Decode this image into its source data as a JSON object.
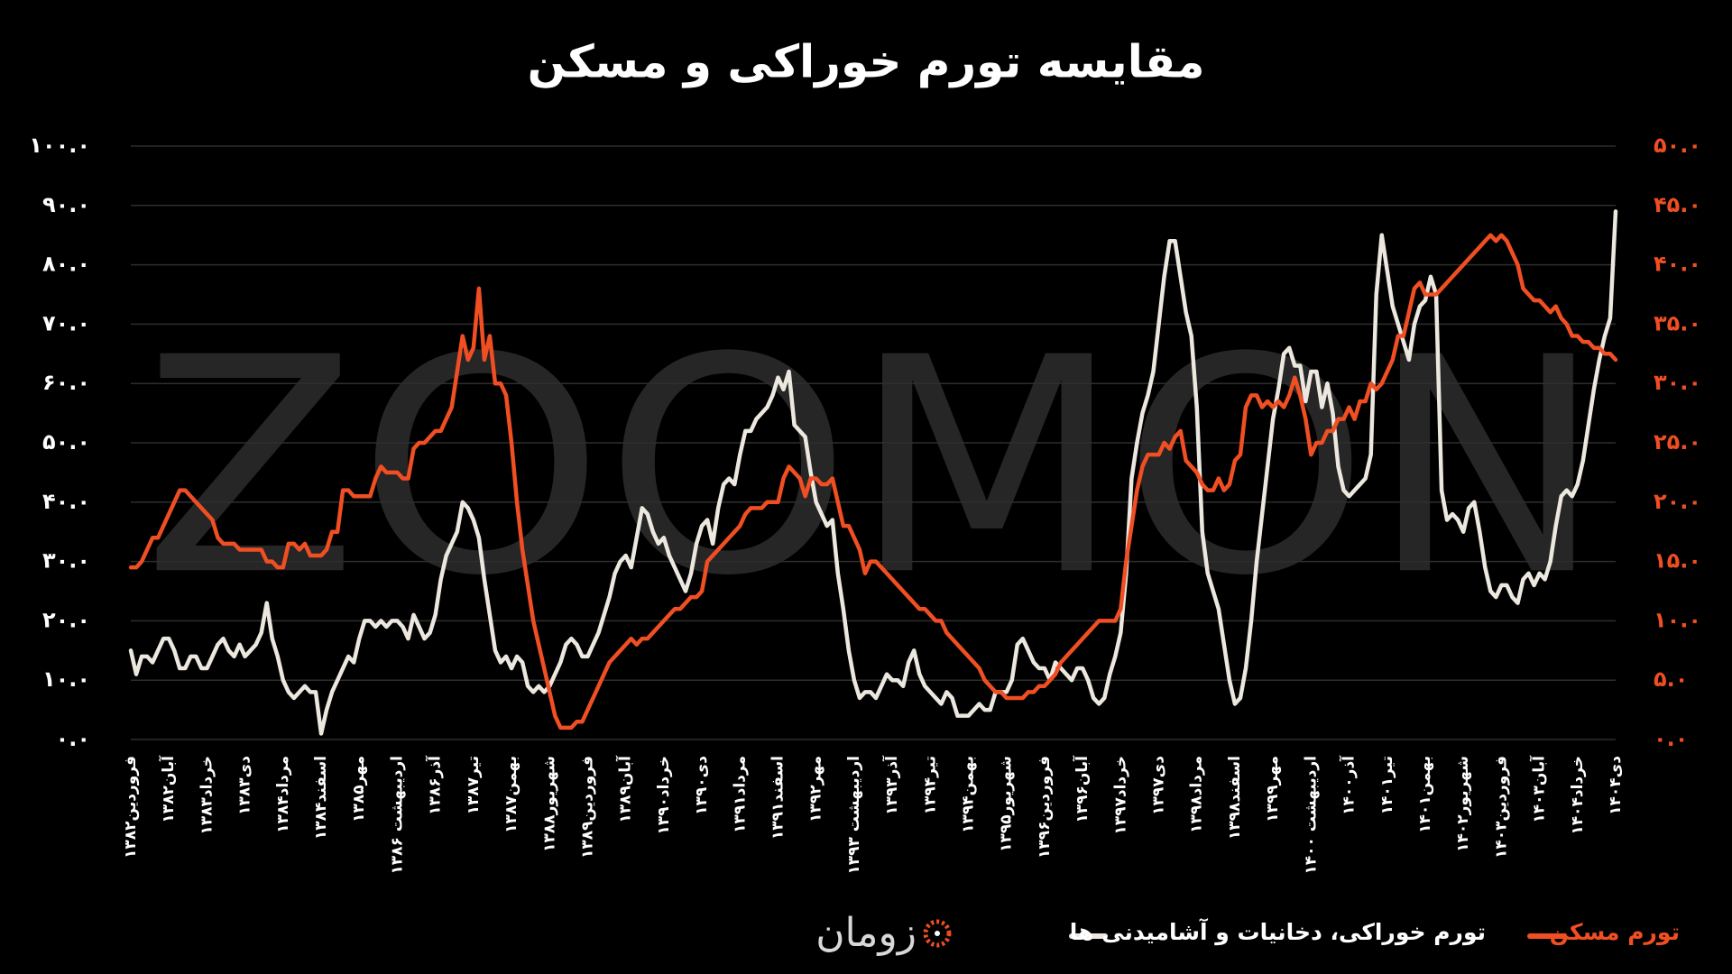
{
  "chart_data": {
    "type": "line",
    "title": "مقایسه تورم خوراکی و مسکن",
    "watermark": "ZOOMON",
    "brand": "زومان",
    "grid": true,
    "legend": "bottom",
    "categories": [
      "فروردین۱۳۸۲",
      null,
      null,
      null,
      null,
      null,
      null,
      "آبان۱۳۸۲",
      null,
      null,
      null,
      null,
      null,
      null,
      "خرداد۱۳۸۳",
      null,
      null,
      null,
      null,
      null,
      null,
      "دی۱۳۸۳",
      null,
      null,
      null,
      null,
      null,
      null,
      "مرداد۱۳۸۴",
      null,
      null,
      null,
      null,
      null,
      null,
      "اسفند۱۳۸۴",
      null,
      null,
      null,
      null,
      null,
      null,
      "مهر۱۳۸۵",
      null,
      null,
      null,
      null,
      null,
      null,
      "اردیبهشت ۱۳۸۶",
      null,
      null,
      null,
      null,
      null,
      null,
      "آذر۱۳۸۶",
      null,
      null,
      null,
      null,
      null,
      null,
      "تیر۱۳۸۷",
      null,
      null,
      null,
      null,
      null,
      null,
      "بهمن۱۳۸۷",
      null,
      null,
      null,
      null,
      null,
      null,
      "شهریور۱۳۸۸",
      null,
      null,
      null,
      null,
      null,
      null,
      "فروردین۱۳۸۹",
      null,
      null,
      null,
      null,
      null,
      null,
      "آبان۱۳۸۹",
      null,
      null,
      null,
      null,
      null,
      null,
      "خرداد۱۳۹۰",
      null,
      null,
      null,
      null,
      null,
      null,
      "دی۱۳۹۰",
      null,
      null,
      null,
      null,
      null,
      null,
      "مرداد۱۳۹۱",
      null,
      null,
      null,
      null,
      null,
      null,
      "اسفند۱۳۹۱",
      null,
      null,
      null,
      null,
      null,
      null,
      "مهر۱۳۹۲",
      null,
      null,
      null,
      null,
      null,
      null,
      "اردیبهشت ۱۳۹۳",
      null,
      null,
      null,
      null,
      null,
      null,
      "آذر۱۳۹۳",
      null,
      null,
      null,
      null,
      null,
      null,
      "تیر۱۳۹۴",
      null,
      null,
      null,
      null,
      null,
      null,
      "بهمن۱۳۹۴",
      null,
      null,
      null,
      null,
      null,
      null,
      "شهریور۱۳۹۵",
      null,
      null,
      null,
      null,
      null,
      null,
      "فروردین۱۳۹۶",
      null,
      null,
      null,
      null,
      null,
      null,
      "آبان۱۳۹۶",
      null,
      null,
      null,
      null,
      null,
      null,
      "خرداد۱۳۹۷",
      null,
      null,
      null,
      null,
      null,
      null,
      "دی۱۳۹۷",
      null,
      null,
      null,
      null,
      null,
      null,
      "مرداد۱۳۹۸",
      null,
      null,
      null,
      null,
      null,
      null,
      "اسفند۱۳۹۸",
      null,
      null,
      null,
      null,
      null,
      null,
      "مهر۱۳۹۹",
      null,
      null,
      null,
      null,
      null,
      null,
      "اردیبهشت ۱۴۰۰",
      null,
      null,
      null,
      null,
      null,
      null,
      "آذر۱۴۰۰",
      null,
      null,
      null,
      null,
      null,
      null,
      "تیر۱۴۰۱",
      null,
      null,
      null,
      null,
      null,
      null,
      "بهمن۱۴۰۱",
      null,
      null,
      null,
      null,
      null,
      null,
      "شهریور۱۴۰۲",
      null,
      null,
      null,
      null,
      null,
      null,
      "فروردین۱۴۰۳",
      null,
      null,
      null,
      null,
      null,
      null,
      "آبان۱۴۰۳",
      null,
      null,
      null,
      null,
      null,
      null,
      "خرداد۱۴۰۴",
      null,
      null,
      null,
      null,
      null,
      null,
      "دی۱۴۰۴"
    ],
    "series": [
      {
        "name": "تورم خوراکی، دخانیات و آشامیدنی ها",
        "color": "#ece8df",
        "axis": "y",
        "values": [
          15,
          11,
          14,
          14,
          13,
          15,
          17,
          17,
          15,
          12,
          12,
          14,
          14,
          12,
          12,
          14,
          16,
          17,
          15,
          14,
          16,
          14,
          15,
          16,
          18,
          23,
          17,
          14,
          10,
          8,
          7,
          8,
          9,
          8,
          8,
          1,
          5,
          8,
          10,
          12,
          14,
          13,
          17,
          20,
          20,
          19,
          20,
          19,
          20,
          20,
          19,
          17,
          21,
          19,
          17,
          18,
          21,
          27,
          31,
          33,
          35,
          40,
          39,
          37,
          34,
          27,
          21,
          15,
          13,
          14,
          12,
          14,
          13,
          9,
          8,
          9,
          8,
          9,
          11,
          13,
          16,
          17,
          16,
          14,
          14,
          16,
          18,
          21,
          24,
          28,
          30,
          31,
          29,
          34,
          39,
          38,
          35,
          33,
          34,
          31,
          29,
          27,
          25,
          28,
          33,
          36,
          37,
          33,
          39,
          43,
          44,
          43,
          48,
          52,
          52,
          54,
          55,
          56,
          58,
          61,
          59,
          62,
          53,
          52,
          51,
          45,
          40,
          38,
          36,
          37,
          28,
          22,
          15,
          10,
          7,
          8,
          8,
          7,
          9,
          11,
          10,
          10,
          9,
          13,
          15,
          11,
          9,
          8,
          7,
          6,
          8,
          7,
          4,
          4,
          4,
          5,
          6,
          5,
          5,
          8,
          8,
          8,
          10,
          16,
          17,
          15,
          13,
          12,
          12,
          10,
          13,
          12,
          11,
          10,
          12,
          12,
          10,
          7,
          6,
          7,
          11,
          14,
          18,
          28,
          44,
          50,
          55,
          58,
          62,
          70,
          78,
          84,
          84,
          78,
          72,
          68,
          56,
          35,
          28,
          25,
          22,
          16,
          10,
          6,
          7,
          12,
          20,
          30,
          38,
          46,
          54,
          59,
          65,
          66,
          63,
          63,
          57,
          62,
          62,
          56,
          60,
          55,
          46,
          42,
          41,
          42,
          43,
          44,
          48,
          75,
          85,
          79,
          73,
          70,
          67,
          64,
          70,
          73,
          74,
          78,
          75,
          42,
          37,
          38,
          37,
          35,
          39,
          40,
          35,
          29,
          25,
          24,
          26,
          26,
          24,
          23,
          27,
          28,
          26,
          28,
          27,
          30,
          36,
          41,
          42,
          41,
          43,
          47,
          53,
          59,
          64,
          68,
          71,
          89
        ]
      },
      {
        "name": "تورم مسکن",
        "color": "#f04e23",
        "axis": "y2",
        "values": [
          14.5,
          14.5,
          15,
          16,
          17,
          17,
          18,
          19,
          20,
          21,
          21,
          20.5,
          20,
          19.5,
          19,
          18.5,
          17,
          16.5,
          16.5,
          16.5,
          16,
          16,
          16,
          16,
          16,
          15,
          15,
          14.5,
          14.5,
          16.5,
          16.5,
          16,
          16.5,
          15.5,
          15.5,
          15.5,
          16,
          17.5,
          17.5,
          21,
          21,
          20.5,
          20.5,
          20.5,
          20.5,
          22,
          23,
          22.5,
          22.5,
          22.5,
          22,
          22,
          24.5,
          25,
          25,
          25.5,
          26,
          26,
          27,
          28,
          31,
          34,
          32,
          33,
          38,
          32,
          34,
          30,
          30,
          29,
          25,
          20,
          16,
          13,
          10,
          8,
          6,
          4,
          2,
          1,
          1,
          1,
          1.5,
          1.5,
          2.5,
          3.5,
          4.5,
          5.5,
          6.5,
          7,
          7.5,
          8,
          8.5,
          8,
          8.5,
          8.5,
          9,
          9.5,
          10,
          10.5,
          11,
          11,
          11.5,
          12,
          12,
          12.5,
          15,
          15.5,
          16,
          16.5,
          17,
          17.5,
          18,
          19,
          19.5,
          19.5,
          19.5,
          20,
          20,
          20,
          22,
          23,
          22.5,
          22,
          20.5,
          22,
          22,
          21.5,
          21.5,
          22,
          20,
          18,
          18,
          17,
          16,
          14,
          15,
          15,
          14.5,
          14,
          13.5,
          13,
          12.5,
          12,
          11.5,
          11,
          11,
          10.5,
          10,
          10,
          9,
          8.5,
          8,
          7.5,
          7,
          6.5,
          6,
          5,
          4.5,
          4,
          4,
          3.5,
          3.5,
          3.5,
          3.5,
          4,
          4,
          4.5,
          4.5,
          5,
          5.5,
          6.5,
          7,
          7.5,
          8,
          8.5,
          9,
          9.5,
          10,
          10,
          10,
          10,
          11,
          15,
          18,
          21,
          23,
          24,
          24,
          24,
          25,
          24.5,
          25.5,
          26,
          23.5,
          23,
          22.5,
          21.5,
          21,
          21,
          22,
          21,
          21.5,
          23.5,
          24,
          28,
          29,
          29,
          28,
          28.5,
          28,
          28.5,
          28,
          29,
          30.5,
          29,
          27,
          24,
          25,
          25,
          26,
          26,
          27,
          27,
          28,
          27,
          28.5,
          28.5,
          30,
          29.5,
          30,
          31,
          32,
          34,
          34,
          36,
          38,
          38.5,
          37.5,
          37.5,
          37.5,
          38,
          38.5,
          39,
          39.5,
          40,
          40.5,
          41,
          41.5,
          42,
          42.5,
          42,
          42.5,
          42,
          41,
          40,
          38,
          37.5,
          37,
          37,
          36.5,
          36,
          36.5,
          35.5,
          35,
          34,
          34,
          33.5,
          33.5,
          33,
          33,
          32.5,
          32.5,
          32
        ]
      }
    ],
    "ylim": [
      0,
      100
    ],
    "yticks": [
      {
        "value": 0,
        "label": "۰.۰"
      },
      {
        "value": 10,
        "label": "۱۰.۰"
      },
      {
        "value": 20,
        "label": "۲۰.۰"
      },
      {
        "value": 30,
        "label": "۳۰.۰"
      },
      {
        "value": 40,
        "label": "۴۰.۰"
      },
      {
        "value": 50,
        "label": "۵۰.۰"
      },
      {
        "value": 60,
        "label": "۶۰.۰"
      },
      {
        "value": 70,
        "label": "۷۰.۰"
      },
      {
        "value": 80,
        "label": "۸۰.۰"
      },
      {
        "value": 90,
        "label": "۹۰.۰"
      },
      {
        "value": 100,
        "label": "۱۰۰.۰"
      }
    ],
    "y2lim": [
      0,
      50
    ],
    "y2ticks": [
      {
        "value": 0,
        "label": "۰.۰"
      },
      {
        "value": 5,
        "label": "۵.۰"
      },
      {
        "value": 10,
        "label": "۱۰.۰"
      },
      {
        "value": 15,
        "label": "۱۵.۰"
      },
      {
        "value": 20,
        "label": "۲۰.۰"
      },
      {
        "value": 25,
        "label": "۲۵.۰"
      },
      {
        "value": 30,
        "label": "۳۰.۰"
      },
      {
        "value": 35,
        "label": "۳۵.۰"
      },
      {
        "value": 40,
        "label": "۴۰.۰"
      },
      {
        "value": 45,
        "label": "۴۵.۰"
      },
      {
        "value": 50,
        "label": "۵۰.۰"
      }
    ]
  }
}
